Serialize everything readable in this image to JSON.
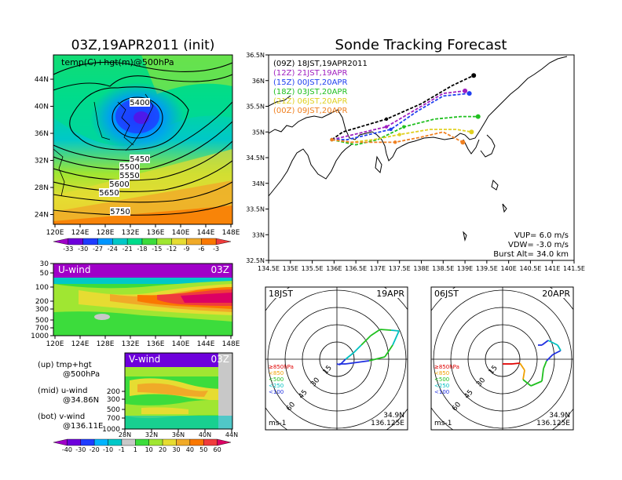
{
  "map_panel": {
    "title": "03Z,19APR2011 (init)",
    "field_label": "temp(C)+hgt(m)@500hPa",
    "lat_ticks": [
      "44N",
      "40N",
      "36N",
      "32N",
      "28N",
      "24N"
    ],
    "lon_ticks": [
      "120E",
      "124E",
      "128E",
      "132E",
      "136E",
      "140E",
      "144E",
      "148E"
    ],
    "contour_labels": [
      "5400",
      "5450",
      "5500",
      "5550",
      "5600",
      "5650",
      "5750"
    ],
    "colorbar_ticks": [
      "-33",
      "-30",
      "-27",
      "-24",
      "-21",
      "-18",
      "-15",
      "-12",
      "-9",
      "-6",
      "-3"
    ],
    "colorbar_colors": [
      "#a000c8",
      "#6e00dc",
      "#1e3cff",
      "#0096ff",
      "#00c8c8",
      "#00dc8c",
      "#3cdc3c",
      "#a0e632",
      "#e6dc32",
      "#f0aa28",
      "#fa7800",
      "#f03c3c"
    ]
  },
  "uwind_panel": {
    "label": "U-wind",
    "time": "03Z",
    "y_ticks": [
      "30",
      "50",
      "100",
      "200",
      "300",
      "500",
      "700",
      "1000"
    ],
    "x_ticks": [
      "120E",
      "124E",
      "128E",
      "132E",
      "136E",
      "140E",
      "144E",
      "148E"
    ]
  },
  "vwind_panel": {
    "label": "V-wind",
    "time": "03Z",
    "y_ticks": [
      "200",
      "300",
      "500",
      "700",
      "1000"
    ],
    "x_ticks": [
      "28N",
      "32N",
      "36N",
      "40N",
      "44N"
    ],
    "colorbar_ticks": [
      "-40",
      "-30",
      "-20",
      "-10",
      "-1",
      "1",
      "10",
      "20",
      "30",
      "40",
      "50",
      "60"
    ],
    "colorbar_colors": [
      "#a000c8",
      "#6e00dc",
      "#1e3cff",
      "#00b4ff",
      "#00c8c8",
      "#c8c8c8",
      "#3cdc3c",
      "#a0e632",
      "#e6dc32",
      "#f0aa28",
      "#fa7800",
      "#f03c3c",
      "#dc0064"
    ]
  },
  "legend_notes": [
    {
      "top": "(up)  tmp+hgt",
      "bottom": "@500hPa"
    },
    {
      "top": "(mid)  u-wind",
      "bottom": "@34.86N"
    },
    {
      "top": "(bot)  v-wind",
      "bottom": "@136.11E"
    }
  ],
  "tracking_panel": {
    "title": "Sonde Tracking Forecast",
    "lat_ticks": [
      "36.5N",
      "36N",
      "35.5N",
      "35N",
      "34.5N",
      "34N",
      "33.5N",
      "33N",
      "32.5N"
    ],
    "lon_ticks": [
      "134.5E",
      "135E",
      "135.5E",
      "136E",
      "136.5E",
      "137E",
      "137.5E",
      "138E",
      "138.5E",
      "139E",
      "139.5E",
      "140E",
      "140.5E",
      "141E",
      "141.5E"
    ],
    "params": [
      "VUP=  6.0  m/s",
      "VDW=  -3.0  m/s",
      "Burst Alt=  34.0  km"
    ]
  },
  "hodographs": [
    {
      "time": "18JST",
      "date": "19APR",
      "lat": "34.9N",
      "lon": "136.125E",
      "unit": "ms-1"
    },
    {
      "time": "06JST",
      "date": "20APR",
      "lat": "34.9N",
      "lon": "136.125E",
      "unit": "ms-1"
    }
  ],
  "hodo_legend": [
    {
      "label": "≥850hPa",
      "color": "#e00000"
    },
    {
      "label": "<850",
      "color": "#f0a000"
    },
    {
      "label": "<500",
      "color": "#20c020"
    },
    {
      "label": "<250",
      "color": "#00c0c0"
    },
    {
      "label": "<100",
      "color": "#2030e0"
    }
  ],
  "ring_labels": [
    "15",
    "30",
    "45",
    "60"
  ],
  "chart_data": {
    "type": "line",
    "title": "Sonde Tracking Forecast",
    "xlabel": "",
    "ylabel": "",
    "xlim": [
      134.5,
      141.5
    ],
    "ylim": [
      32.5,
      36.5
    ],
    "series": [
      {
        "name": "(09Z)  18JST,19APR2011",
        "color": "#000000",
        "x": [
          135.95,
          136.2,
          136.6,
          137.2,
          138.0,
          138.7,
          139.2
        ],
        "y": [
          34.85,
          35.0,
          35.1,
          35.25,
          35.55,
          35.9,
          36.1
        ]
      },
      {
        "name": "(12Z)  21JST,19APR",
        "color": "#a020c0",
        "x": [
          135.95,
          136.2,
          136.7,
          137.2,
          137.9,
          138.5,
          139.0
        ],
        "y": [
          34.85,
          34.9,
          35.0,
          35.1,
          35.45,
          35.75,
          35.8
        ]
      },
      {
        "name": "(15Z)  00JST,20APR",
        "color": "#2040f0",
        "x": [
          135.95,
          136.3,
          136.8,
          137.3,
          137.9,
          138.5,
          139.1
        ],
        "y": [
          34.85,
          34.85,
          34.95,
          35.05,
          35.4,
          35.7,
          35.75
        ]
      },
      {
        "name": "(18Z)  03JST,20APR",
        "color": "#20c020",
        "x": [
          135.95,
          136.5,
          137.0,
          137.6,
          138.3,
          138.9,
          139.3
        ],
        "y": [
          34.85,
          34.75,
          34.85,
          35.1,
          35.25,
          35.3,
          35.3
        ]
      },
      {
        "name": "(21Z)  06JST,20APR",
        "color": "#e0d020",
        "x": [
          135.95,
          136.4,
          136.9,
          137.5,
          138.2,
          138.8,
          139.15
        ],
        "y": [
          34.85,
          34.8,
          34.85,
          34.95,
          35.05,
          35.05,
          35.0
        ]
      },
      {
        "name": "(00Z)  09JST,20APR",
        "color": "#f08020",
        "x": [
          135.95,
          136.4,
          136.9,
          137.4,
          138.0,
          138.5,
          138.95
        ],
        "y": [
          34.85,
          34.8,
          34.8,
          34.8,
          34.9,
          35.0,
          34.8
        ]
      }
    ]
  }
}
